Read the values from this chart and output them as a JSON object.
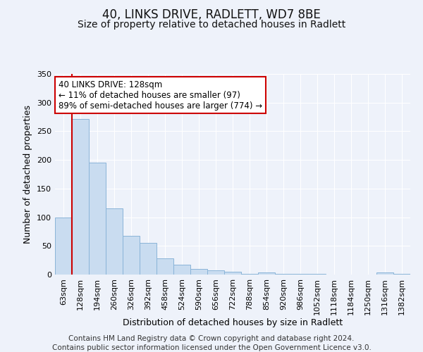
{
  "title": "40, LINKS DRIVE, RADLETT, WD7 8BE",
  "subtitle": "Size of property relative to detached houses in Radlett",
  "xlabel": "Distribution of detached houses by size in Radlett",
  "ylabel": "Number of detached properties",
  "bar_labels": [
    "63sqm",
    "128sqm",
    "194sqm",
    "260sqm",
    "326sqm",
    "392sqm",
    "458sqm",
    "524sqm",
    "590sqm",
    "656sqm",
    "722sqm",
    "788sqm",
    "854sqm",
    "920sqm",
    "986sqm",
    "1052sqm",
    "1118sqm",
    "1184sqm",
    "1250sqm",
    "1316sqm",
    "1382sqm"
  ],
  "bar_values": [
    100,
    272,
    195,
    115,
    68,
    55,
    28,
    17,
    10,
    7,
    5,
    1,
    4,
    1,
    1,
    1,
    0,
    0,
    0,
    4,
    1
  ],
  "bar_color": "#c9dcf0",
  "bar_edge_color": "#8ab4d8",
  "vline_x_idx": 1,
  "vline_color": "#cc0000",
  "annotation_text": "40 LINKS DRIVE: 128sqm\n← 11% of detached houses are smaller (97)\n89% of semi-detached houses are larger (774) →",
  "annotation_box_color": "#ffffff",
  "annotation_box_edge": "#cc0000",
  "ylim": [
    0,
    350
  ],
  "yticks": [
    0,
    50,
    100,
    150,
    200,
    250,
    300,
    350
  ],
  "footer_line1": "Contains HM Land Registry data © Crown copyright and database right 2024.",
  "footer_line2": "Contains public sector information licensed under the Open Government Licence v3.0.",
  "background_color": "#eef2fa",
  "plot_bg_color": "#eef2fa",
  "grid_color": "#ffffff",
  "title_fontsize": 12,
  "subtitle_fontsize": 10,
  "axis_label_fontsize": 9,
  "tick_fontsize": 8,
  "footer_fontsize": 7.5,
  "annotation_fontsize": 8.5
}
